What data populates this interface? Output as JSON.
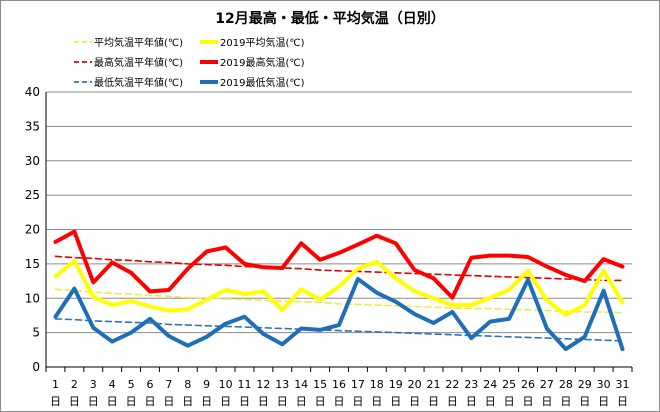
{
  "chart_data": {
    "type": "line",
    "title": "12月最高・最低・平均気温（日別）",
    "x": [
      "1",
      "2",
      "3",
      "4",
      "5",
      "6",
      "7",
      "8",
      "9",
      "10",
      "11",
      "12",
      "13",
      "14",
      "15",
      "16",
      "17",
      "18",
      "19",
      "20",
      "21",
      "22",
      "23",
      "24",
      "25",
      "26",
      "27",
      "28",
      "29",
      "30",
      "31"
    ],
    "x_suffix": "日",
    "ylim": [
      0,
      40
    ],
    "yticks": [
      0,
      5,
      10,
      15,
      20,
      25,
      30,
      35,
      40
    ],
    "grid": true,
    "legend_position": "top-left",
    "series": [
      {
        "name": "平均気温平年値(℃)",
        "color": "#f5e64a",
        "style": "dashed",
        "values": [
          11.3,
          11.1,
          10.9,
          10.7,
          10.6,
          10.4,
          10.3,
          10.1,
          10.0,
          9.9,
          9.8,
          9.7,
          9.6,
          9.5,
          9.4,
          9.2,
          9.1,
          9.0,
          8.9,
          8.8,
          8.7,
          8.6,
          8.5,
          8.5,
          8.4,
          8.3,
          8.2,
          8.1,
          8.0,
          8.0,
          7.9
        ]
      },
      {
        "name": "2019平均気温(℃)",
        "color": "#ffff00",
        "style": "solid",
        "values": [
          13.2,
          15.4,
          10.2,
          9.0,
          9.6,
          8.8,
          8.2,
          8.4,
          9.8,
          11.2,
          10.6,
          11.0,
          8.3,
          11.3,
          9.8,
          11.7,
          14.3,
          15.3,
          12.9,
          11.0,
          10.0,
          9.0,
          9.0,
          10.1,
          11.2,
          14.0,
          9.7,
          7.6,
          9.0,
          14.0,
          9.4
        ]
      },
      {
        "name": "最高気温平年値(℃)",
        "color": "#e30000",
        "style": "dashed",
        "values": [
          16.1,
          15.9,
          15.8,
          15.6,
          15.5,
          15.3,
          15.2,
          15.0,
          14.9,
          14.8,
          14.6,
          14.5,
          14.4,
          14.3,
          14.1,
          14.0,
          13.9,
          13.8,
          13.7,
          13.6,
          13.5,
          13.4,
          13.3,
          13.2,
          13.1,
          13.0,
          12.9,
          12.8,
          12.7,
          12.6,
          12.6
        ]
      },
      {
        "name": "2019最高気温(℃)",
        "color": "#ff0000",
        "style": "solid",
        "values": [
          18.2,
          19.7,
          12.3,
          15.2,
          13.7,
          11.0,
          11.2,
          14.3,
          16.8,
          17.4,
          15.0,
          14.5,
          14.4,
          18.0,
          15.6,
          16.6,
          17.8,
          19.1,
          18.0,
          14.1,
          12.9,
          10.1,
          15.9,
          16.2,
          16.2,
          16.0,
          14.6,
          13.4,
          12.5,
          15.7,
          14.6
        ]
      },
      {
        "name": "最低気温平年値(℃)",
        "color": "#2e75b6",
        "style": "dashed",
        "values": [
          7.0,
          6.9,
          6.7,
          6.6,
          6.5,
          6.4,
          6.2,
          6.1,
          6.0,
          5.9,
          5.8,
          5.7,
          5.6,
          5.5,
          5.4,
          5.3,
          5.2,
          5.1,
          5.0,
          4.9,
          4.8,
          4.7,
          4.6,
          4.5,
          4.4,
          4.3,
          4.2,
          4.1,
          4.0,
          3.9,
          3.8
        ]
      },
      {
        "name": "2019最低気温(℃)",
        "color": "#1f6eb8",
        "style": "solid",
        "values": [
          7.3,
          11.4,
          5.7,
          3.7,
          5.0,
          7.0,
          4.5,
          3.1,
          4.4,
          6.3,
          7.3,
          4.8,
          3.3,
          5.6,
          5.4,
          6.1,
          12.8,
          10.8,
          9.5,
          7.7,
          6.4,
          8.0,
          4.2,
          6.6,
          7.0,
          12.7,
          5.6,
          2.6,
          4.4,
          11.1,
          2.6
        ]
      }
    ]
  }
}
